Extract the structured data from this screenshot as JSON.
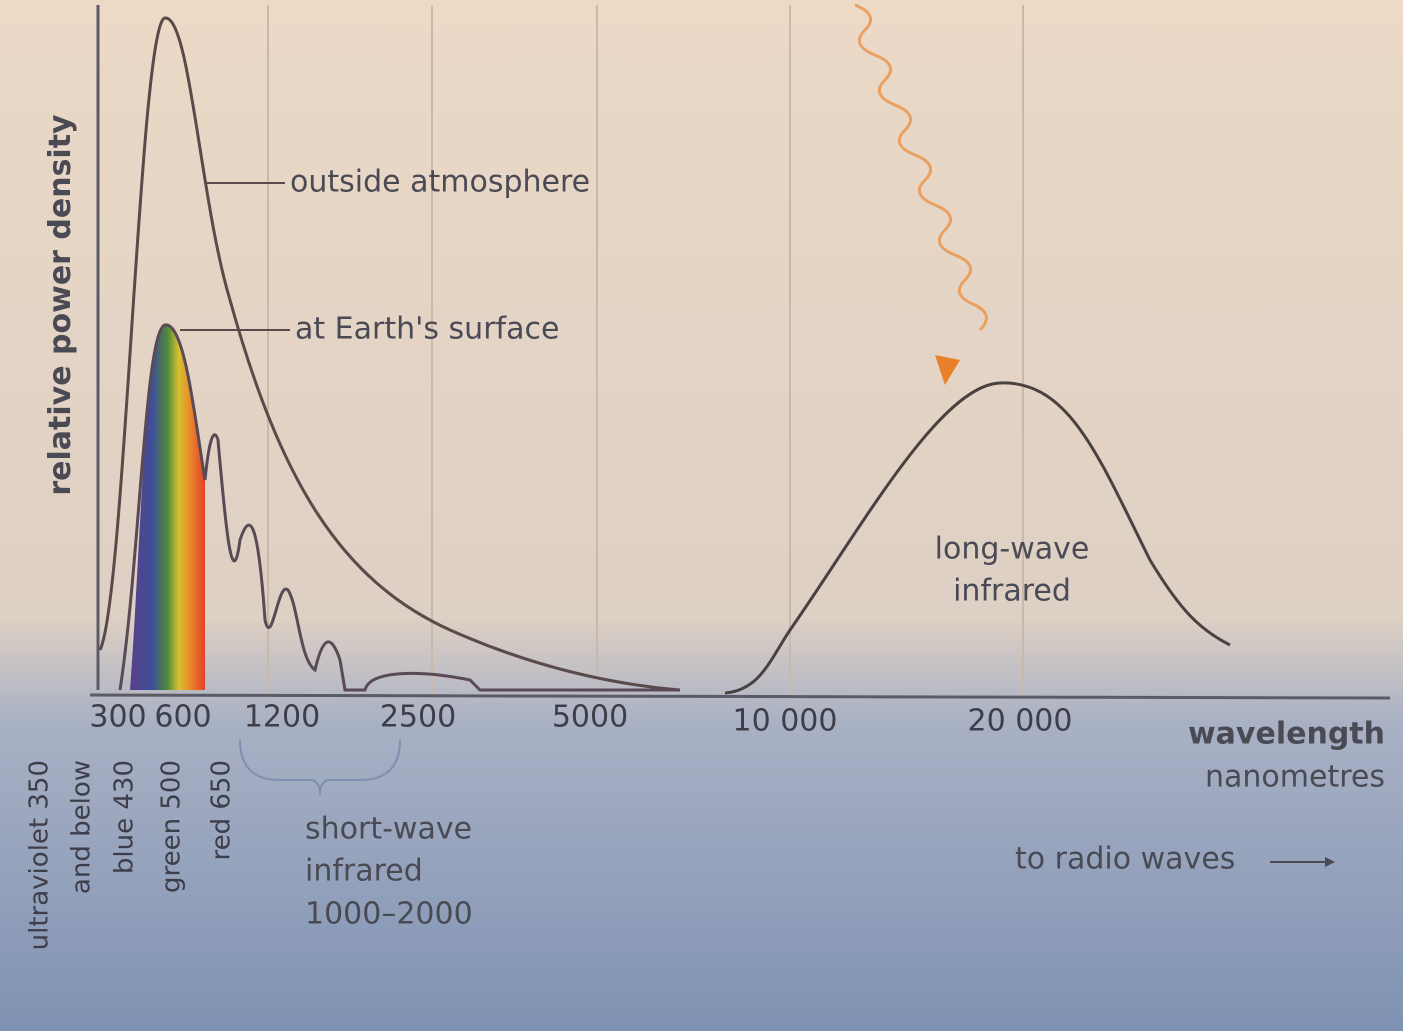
{
  "axis": {
    "y_label": "relative power density",
    "x_label": "wavelength",
    "x_unit": "nanometres",
    "ticks": [
      "300",
      "600",
      "1200",
      "2500",
      "5000",
      "10 000",
      "20 000"
    ]
  },
  "curves": {
    "outside": "outside atmosphere",
    "surface": "at Earth's surface",
    "longwave": [
      "long-wave",
      "infrared"
    ]
  },
  "bands": {
    "ultraviolet": [
      "ultraviolet 350",
      "and below"
    ],
    "blue": "blue 430",
    "green": "green 500",
    "red": "red 650",
    "shortwave": [
      "short-wave",
      "infrared",
      "1000–2000"
    ]
  },
  "note": "to radio waves"
}
